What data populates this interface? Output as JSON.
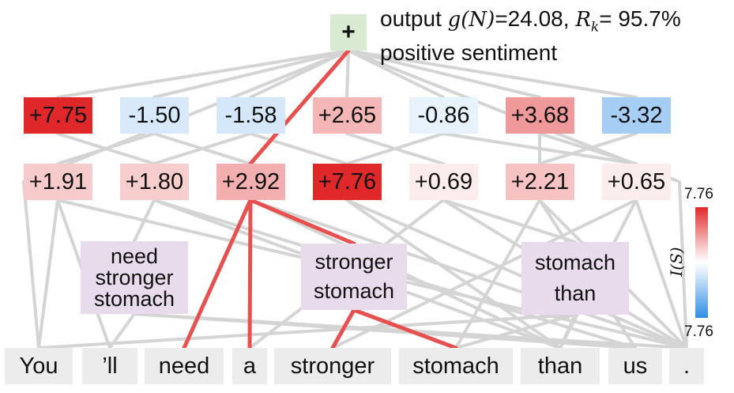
{
  "output": {
    "root_symbol": "+",
    "line1_prefix": "output ",
    "line1_func": "g(N)",
    "line1_value": "=24.08, ",
    "line1_rk": "R",
    "line1_rk_sub": "k",
    "line1_rk_value": "= 95.7%",
    "line2": "positive sentiment"
  },
  "tokens": [
    "You",
    "’ll",
    "need",
    "a",
    "stronger",
    "stomach",
    "than",
    "us",
    "."
  ],
  "phrases": [
    {
      "lines": [
        "need",
        "stronger",
        "stomach"
      ]
    },
    {
      "lines": [
        "stronger",
        "stomach"
      ]
    },
    {
      "lines": [
        "stomach",
        "than"
      ]
    }
  ],
  "upper_row": [
    {
      "label": "+7.75",
      "value": 7.75
    },
    {
      "label": "-1.50",
      "value": -1.5
    },
    {
      "label": "-1.58",
      "value": -1.58
    },
    {
      "label": "+2.65",
      "value": 2.65
    },
    {
      "label": "-0.86",
      "value": -0.86
    },
    {
      "label": "+3.68",
      "value": 3.68
    },
    {
      "label": "-3.32",
      "value": -3.32
    }
  ],
  "lower_row": [
    {
      "label": "+1.91",
      "value": 1.91
    },
    {
      "label": "+1.80",
      "value": 1.8
    },
    {
      "label": "+2.92",
      "value": 2.92
    },
    {
      "label": "+7.76",
      "value": 7.76
    },
    {
      "label": "+0.69",
      "value": 0.69
    },
    {
      "label": "+2.21",
      "value": 2.21
    },
    {
      "label": "+0.65",
      "value": 0.65
    }
  ],
  "colorbar": {
    "max_label": "7.76",
    "min_label": "7.76",
    "axis_label": "I(S)",
    "positive_color": "#e0282a",
    "negative_color": "#2f8de6",
    "neutral_color": "#ffffff"
  },
  "colors": {
    "edge_gray": "#d4d4d4",
    "edge_highlight": "#e8504f",
    "token_bg": "#ececec",
    "phrase_bg": "#e8dcec",
    "root_bg": "#d8ebd2"
  }
}
